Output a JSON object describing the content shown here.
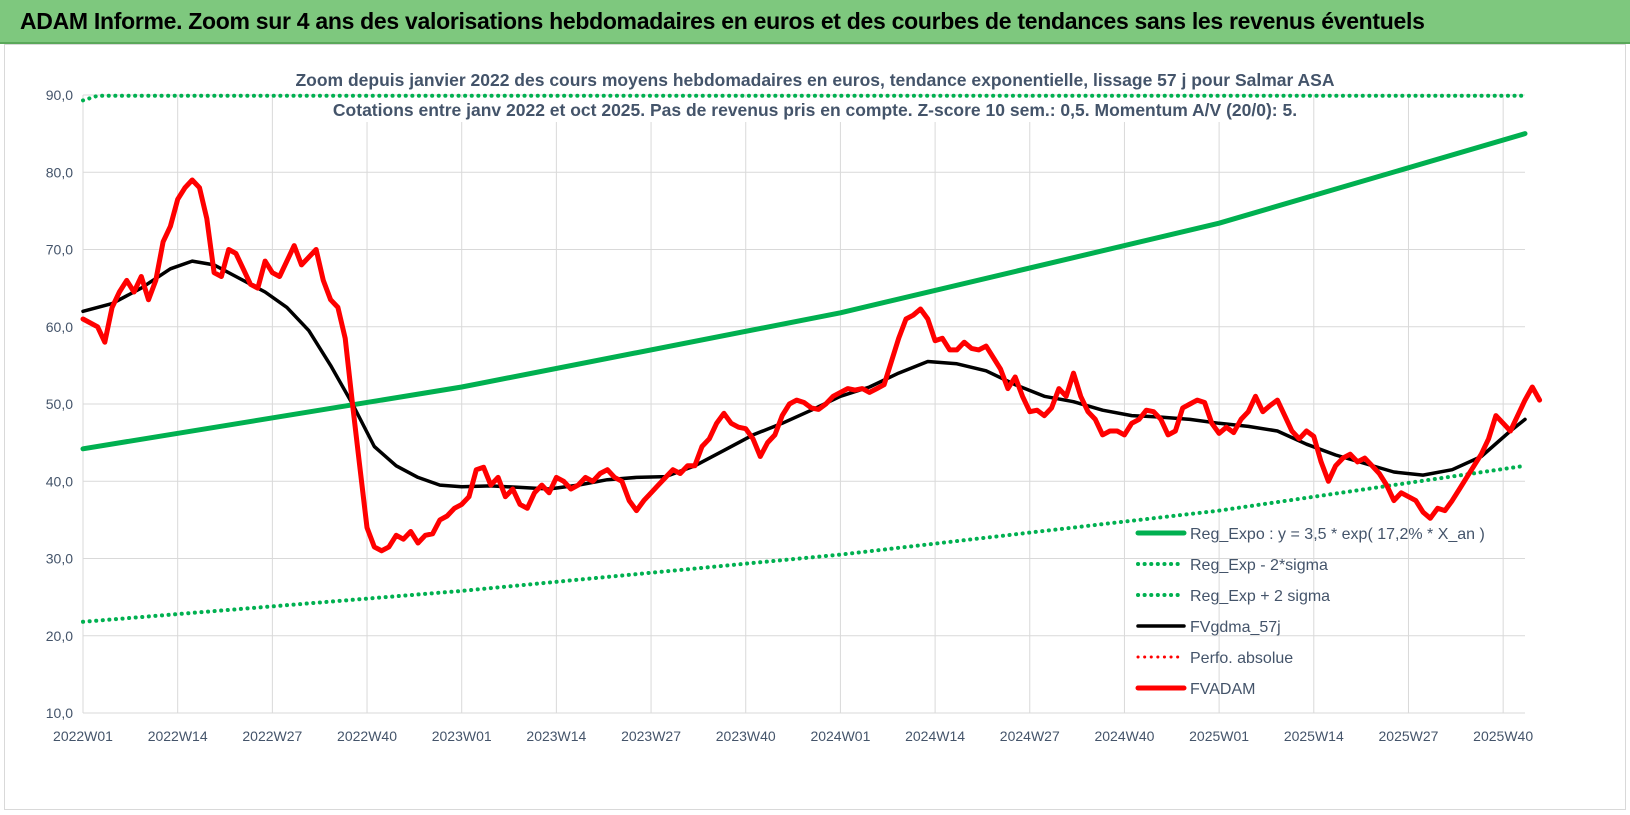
{
  "header": {
    "title": "ADAM Informe. Zoom sur 4 ans des valorisations hebdomadaires en euros et des courbes de tendances sans les revenus éventuels"
  },
  "chart_data": {
    "type": "line",
    "title": "Zoom depuis janvier 2022 des cours moyens hebdomadaires en euros, tendance exponentielle, lissage 57 j pour Salmar ASA",
    "subtitle": "Cotations entre janv 2022 et oct 2025. Pas de revenus pris en compte. Z-score 10 sem.: 0,5. Momentum A/V (20/0): 5.",
    "xlabel": "",
    "ylabel": "",
    "ylim": [
      10,
      90
    ],
    "y_ticks": [
      "10,0",
      "20,0",
      "30,0",
      "40,0",
      "50,0",
      "60,0",
      "70,0",
      "80,0",
      "90,0"
    ],
    "x_range": [
      0,
      198
    ],
    "x_ticks": [
      {
        "label": "2022W01",
        "x": 0
      },
      {
        "label": "2022W14",
        "x": 13
      },
      {
        "label": "2022W27",
        "x": 26
      },
      {
        "label": "2022W40",
        "x": 39
      },
      {
        "label": "2023W01",
        "x": 52
      },
      {
        "label": "2023W14",
        "x": 65
      },
      {
        "label": "2023W27",
        "x": 78
      },
      {
        "label": "2023W40",
        "x": 91
      },
      {
        "label": "2024W01",
        "x": 104
      },
      {
        "label": "2024W14",
        "x": 117
      },
      {
        "label": "2024W27",
        "x": 130
      },
      {
        "label": "2024W40",
        "x": 143
      },
      {
        "label": "2025W01",
        "x": 156
      },
      {
        "label": "2025W14",
        "x": 169
      },
      {
        "label": "2025W27",
        "x": 182
      },
      {
        "label": "2025W40",
        "x": 195
      }
    ],
    "grid": true,
    "legend_position": "bottom-right",
    "series": [
      {
        "name": "Reg_Expo : y = 3,5 * exp( 17,2% *  X_an )",
        "color": "#00b050",
        "style": "solid",
        "width": 5,
        "points": [
          [
            0,
            44.2
          ],
          [
            52,
            52.2
          ],
          [
            104,
            61.8
          ],
          [
            156,
            73.4
          ],
          [
            198,
            85.0
          ]
        ]
      },
      {
        "name": "Reg_Exp - 2*sigma",
        "color": "#00b050",
        "style": "dotted",
        "width": 4,
        "points": [
          [
            0,
            21.8
          ],
          [
            52,
            25.8
          ],
          [
            104,
            30.5
          ],
          [
            156,
            36.2
          ],
          [
            198,
            42.0
          ]
        ]
      },
      {
        "name": "Reg_Exp + 2 sigma",
        "color": "#00b050",
        "style": "dotted",
        "width": 4,
        "points": [
          [
            0,
            89.3
          ],
          [
            2,
            89.9
          ],
          [
            198,
            89.9
          ]
        ]
      },
      {
        "name": "FVgdma_57j",
        "color": "#000000",
        "style": "solid",
        "width": 3.5,
        "points": [
          [
            0,
            62
          ],
          [
            4,
            63
          ],
          [
            8,
            65
          ],
          [
            12,
            67.5
          ],
          [
            15,
            68.5
          ],
          [
            18,
            68
          ],
          [
            21,
            66.5
          ],
          [
            25,
            64.5
          ],
          [
            28,
            62.5
          ],
          [
            31,
            59.5
          ],
          [
            34,
            55
          ],
          [
            37,
            50
          ],
          [
            40,
            44.5
          ],
          [
            43,
            42
          ],
          [
            46,
            40.5
          ],
          [
            49,
            39.5
          ],
          [
            52,
            39.3
          ],
          [
            56,
            39.4
          ],
          [
            60,
            39.2
          ],
          [
            64,
            39
          ],
          [
            68,
            39.5
          ],
          [
            72,
            40.2
          ],
          [
            76,
            40.5
          ],
          [
            80,
            40.6
          ],
          [
            84,
            42
          ],
          [
            88,
            44
          ],
          [
            92,
            46
          ],
          [
            96,
            47.5
          ],
          [
            100,
            49.2
          ],
          [
            104,
            51
          ],
          [
            108,
            52.2
          ],
          [
            112,
            54
          ],
          [
            116,
            55.5
          ],
          [
            120,
            55.2
          ],
          [
            124,
            54.3
          ],
          [
            128,
            52.5
          ],
          [
            132,
            51
          ],
          [
            136,
            50.3
          ],
          [
            140,
            49.2
          ],
          [
            144,
            48.5
          ],
          [
            148,
            48.3
          ],
          [
            152,
            48
          ],
          [
            156,
            47.5
          ],
          [
            160,
            47.1
          ],
          [
            164,
            46.5
          ],
          [
            168,
            44.8
          ],
          [
            172,
            43.4
          ],
          [
            176,
            42.3
          ],
          [
            180,
            41.2
          ],
          [
            184,
            40.8
          ],
          [
            188,
            41.5
          ],
          [
            192,
            43.2
          ],
          [
            196,
            46.5
          ],
          [
            198,
            48
          ]
        ]
      },
      {
        "name": "Perfo. absolue",
        "color": "#ff0000",
        "style": "dotted",
        "width": 3,
        "points": []
      },
      {
        "name": "FVADAM",
        "color": "#ff0000",
        "style": "solid",
        "width": 5,
        "points": [
          [
            0,
            61
          ],
          [
            2,
            60
          ],
          [
            3,
            58
          ],
          [
            4,
            62.5
          ],
          [
            5,
            64.5
          ],
          [
            6,
            66
          ],
          [
            7,
            64.5
          ],
          [
            8,
            66.5
          ],
          [
            9,
            63.5
          ],
          [
            10,
            66
          ],
          [
            11,
            71
          ],
          [
            12,
            73
          ],
          [
            13,
            76.5
          ],
          [
            14,
            78
          ],
          [
            15,
            79
          ],
          [
            16,
            78
          ],
          [
            17,
            74
          ],
          [
            18,
            67
          ],
          [
            19,
            66.5
          ],
          [
            20,
            70
          ],
          [
            21,
            69.5
          ],
          [
            22,
            67.5
          ],
          [
            23,
            65.5
          ],
          [
            24,
            65
          ],
          [
            25,
            68.5
          ],
          [
            26,
            67
          ],
          [
            27,
            66.5
          ],
          [
            28,
            68.5
          ],
          [
            29,
            70.5
          ],
          [
            30,
            68
          ],
          [
            31,
            69
          ],
          [
            32,
            70
          ],
          [
            33,
            66
          ],
          [
            34,
            63.5
          ],
          [
            35,
            62.5
          ],
          [
            36,
            58.5
          ],
          [
            37,
            50
          ],
          [
            38,
            42
          ],
          [
            39,
            34
          ],
          [
            40,
            31.5
          ],
          [
            41,
            31
          ],
          [
            42,
            31.5
          ],
          [
            43,
            33
          ],
          [
            44,
            32.5
          ],
          [
            45,
            33.5
          ],
          [
            46,
            32
          ],
          [
            47,
            33
          ],
          [
            48,
            33.2
          ],
          [
            49,
            35
          ],
          [
            50,
            35.5
          ],
          [
            51,
            36.5
          ],
          [
            52,
            37
          ],
          [
            53,
            38
          ],
          [
            54,
            41.5
          ],
          [
            55,
            41.8
          ],
          [
            56,
            39.5
          ],
          [
            57,
            40.5
          ],
          [
            58,
            38
          ],
          [
            59,
            39
          ],
          [
            60,
            37
          ],
          [
            61,
            36.5
          ],
          [
            62,
            38.5
          ],
          [
            63,
            39.5
          ],
          [
            64,
            38.5
          ],
          [
            65,
            40.5
          ],
          [
            66,
            40
          ],
          [
            67,
            39
          ],
          [
            68,
            39.5
          ],
          [
            69,
            40.5
          ],
          [
            70,
            40
          ],
          [
            71,
            41
          ],
          [
            72,
            41.5
          ],
          [
            73,
            40.5
          ],
          [
            74,
            40
          ],
          [
            75,
            37.5
          ],
          [
            76,
            36.2
          ],
          [
            77,
            37.5
          ],
          [
            78,
            38.5
          ],
          [
            79,
            39.5
          ],
          [
            80,
            40.5
          ],
          [
            81,
            41.5
          ],
          [
            82,
            41
          ],
          [
            83,
            42
          ],
          [
            84,
            42
          ],
          [
            85,
            44.5
          ],
          [
            86,
            45.5
          ],
          [
            87,
            47.5
          ],
          [
            88,
            48.8
          ],
          [
            89,
            47.5
          ],
          [
            90,
            47
          ],
          [
            91,
            46.8
          ],
          [
            92,
            45.5
          ],
          [
            93,
            43.2
          ],
          [
            94,
            45
          ],
          [
            95,
            46
          ],
          [
            96,
            48.5
          ],
          [
            97,
            50
          ],
          [
            98,
            50.5
          ],
          [
            99,
            50.2
          ],
          [
            100,
            49.5
          ],
          [
            101,
            49.3
          ],
          [
            102,
            50
          ],
          [
            103,
            51
          ],
          [
            104,
            51.5
          ],
          [
            105,
            52
          ],
          [
            106,
            51.8
          ],
          [
            107,
            52
          ],
          [
            108,
            51.5
          ],
          [
            109,
            52
          ],
          [
            110,
            52.5
          ],
          [
            111,
            55.5
          ],
          [
            112,
            58.5
          ],
          [
            113,
            61
          ],
          [
            114,
            61.5
          ],
          [
            115,
            62.3
          ],
          [
            116,
            61
          ],
          [
            117,
            58.2
          ],
          [
            118,
            58.5
          ],
          [
            119,
            57
          ],
          [
            120,
            57
          ],
          [
            121,
            58
          ],
          [
            122,
            57.2
          ],
          [
            123,
            57
          ],
          [
            124,
            57.5
          ],
          [
            125,
            56
          ],
          [
            126,
            54.5
          ],
          [
            127,
            52
          ],
          [
            128,
            53.5
          ],
          [
            129,
            51
          ],
          [
            130,
            49
          ],
          [
            131,
            49.2
          ],
          [
            132,
            48.5
          ],
          [
            133,
            49.5
          ],
          [
            134,
            52
          ],
          [
            135,
            51
          ],
          [
            136,
            54
          ],
          [
            137,
            51
          ],
          [
            138,
            49
          ],
          [
            139,
            48
          ],
          [
            140,
            46
          ],
          [
            141,
            46.5
          ],
          [
            142,
            46.5
          ],
          [
            143,
            46
          ],
          [
            144,
            47.5
          ],
          [
            145,
            48
          ],
          [
            146,
            49.2
          ],
          [
            147,
            49
          ],
          [
            148,
            48
          ],
          [
            149,
            46
          ],
          [
            150,
            46.5
          ],
          [
            151,
            49.5
          ],
          [
            152,
            50
          ],
          [
            153,
            50.5
          ],
          [
            154,
            50.2
          ],
          [
            155,
            47.5
          ],
          [
            156,
            46.2
          ],
          [
            157,
            47
          ],
          [
            158,
            46.3
          ],
          [
            159,
            48
          ],
          [
            160,
            49
          ],
          [
            161,
            51
          ],
          [
            162,
            49
          ],
          [
            163,
            49.8
          ],
          [
            164,
            50.5
          ],
          [
            165,
            48.5
          ],
          [
            166,
            46.5
          ],
          [
            167,
            45.5
          ],
          [
            168,
            46.5
          ],
          [
            169,
            45.8
          ],
          [
            170,
            42.5
          ],
          [
            171,
            40
          ],
          [
            172,
            42
          ],
          [
            173,
            43
          ],
          [
            174,
            43.5
          ],
          [
            175,
            42.5
          ],
          [
            176,
            43
          ],
          [
            177,
            42
          ],
          [
            178,
            41
          ],
          [
            179,
            39.5
          ],
          [
            180,
            37.5
          ],
          [
            181,
            38.5
          ],
          [
            182,
            38
          ],
          [
            183,
            37.5
          ],
          [
            184,
            36
          ],
          [
            185,
            35.2
          ],
          [
            186,
            36.5
          ],
          [
            187,
            36.2
          ],
          [
            188,
            37.5
          ],
          [
            189,
            39
          ],
          [
            190,
            40.5
          ],
          [
            191,
            42
          ],
          [
            192,
            43.5
          ],
          [
            193,
            45.5
          ],
          [
            194,
            48.5
          ],
          [
            195,
            47.5
          ],
          [
            196,
            46.5
          ],
          [
            197,
            48.5
          ],
          [
            198,
            50.5
          ],
          [
            199,
            52.2
          ],
          [
            200,
            50.5
          ]
        ]
      }
    ]
  }
}
